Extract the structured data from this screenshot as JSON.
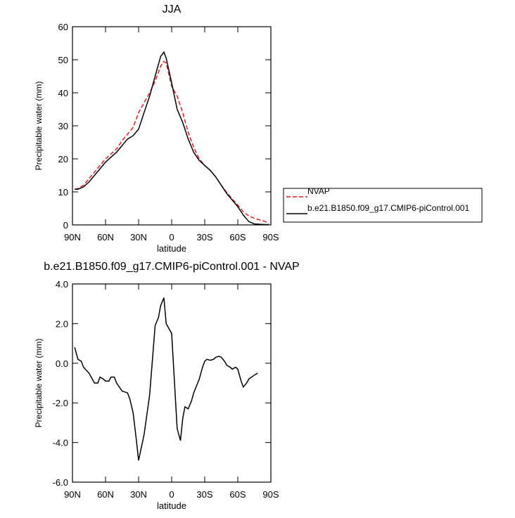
{
  "chart_data": [
    {
      "type": "line",
      "title": "JJA",
      "xlabel": "latitude",
      "ylabel": "Precipitable water (mm)",
      "xlim": [
        90,
        -90
      ],
      "xticks": [
        {
          "value": 90,
          "label": "90N"
        },
        {
          "value": 60,
          "label": "60N"
        },
        {
          "value": 30,
          "label": "30N"
        },
        0,
        {
          "value": -30,
          "label": "30S"
        },
        {
          "value": -60,
          "label": "60S"
        },
        {
          "value": -90,
          "label": "90S"
        }
      ],
      "ylim": [
        0,
        60
      ],
      "yticks": [
        0,
        10,
        20,
        30,
        40,
        50,
        60
      ],
      "legend": "right",
      "x": [
        88,
        85,
        80,
        75,
        70,
        65,
        60,
        55,
        50,
        45,
        40,
        35,
        30,
        25,
        20,
        15,
        10,
        7,
        5,
        0,
        -5,
        -10,
        -15,
        -20,
        -25,
        -30,
        -35,
        -40,
        -45,
        -50,
        -55,
        -60,
        -65,
        -70,
        -75,
        -80,
        -85,
        -88
      ],
      "series": [
        {
          "name": "NVAP",
          "color": "#e41a1c",
          "line_style": "dashed",
          "values": [
            10.8,
            11,
            12,
            14,
            16,
            18,
            20,
            21.5,
            23,
            25.5,
            27.5,
            29.5,
            34,
            37,
            40,
            43.5,
            48,
            49.5,
            49,
            42,
            39,
            34,
            28,
            23.5,
            20,
            18,
            16.5,
            14.5,
            12,
            9.8,
            7.8,
            6,
            4,
            2.7,
            2,
            1.5,
            1,
            0.5
          ]
        },
        {
          "name": "b.e21.B1850.f09_g17.CMIP6-piControl.001",
          "color": "#000000",
          "line_style": "solid",
          "values": [
            10.8,
            10.8,
            11.5,
            13,
            15,
            17,
            19,
            20.5,
            22,
            24,
            26,
            27,
            29,
            34,
            39,
            45,
            51,
            52.3,
            50.5,
            43,
            35,
            31,
            26,
            22,
            19.5,
            18,
            16.5,
            14.5,
            12,
            9.5,
            7.5,
            5.5,
            3,
            1,
            0.3,
            0.2,
            0.1,
            0.1
          ]
        }
      ]
    },
    {
      "type": "line",
      "title": "b.e21.B1850.f09_g17.CMIP6-piControl.001 - NVAP",
      "xlabel": "latitude",
      "ylabel": "Precipitable water (mm)",
      "xlim": [
        90,
        -90
      ],
      "xticks": [
        {
          "value": 90,
          "label": "90N"
        },
        {
          "value": 60,
          "label": "60N"
        },
        {
          "value": 30,
          "label": "30N"
        },
        0,
        {
          "value": -30,
          "label": "30S"
        },
        {
          "value": -60,
          "label": "60S"
        },
        {
          "value": -90,
          "label": "90S"
        }
      ],
      "ylim": [
        -6,
        4
      ],
      "yticks": [
        {
          "value": -6,
          "label": "-6.0"
        },
        {
          "value": -4,
          "label": "-4.0"
        },
        {
          "value": -2,
          "label": "-2.0"
        },
        {
          "value": 0,
          "label": "0.0"
        },
        {
          "value": 2,
          "label": "2.0"
        },
        {
          "value": 4,
          "label": "4.0"
        }
      ],
      "x": [
        88,
        85,
        82,
        80,
        75,
        72,
        70,
        67,
        65,
        62,
        60,
        57,
        55,
        52,
        50,
        45,
        40,
        38,
        35,
        32,
        30,
        25,
        20,
        15,
        12,
        10,
        7,
        5,
        0,
        -5,
        -8,
        -10,
        -12,
        -15,
        -18,
        -20,
        -25,
        -28,
        -30,
        -32,
        -35,
        -38,
        -40,
        -43,
        -45,
        -48,
        -50,
        -53,
        -55,
        -58,
        -60,
        -63,
        -65,
        -68,
        -70,
        -75,
        -78
      ],
      "series": [
        {
          "color": "#000000",
          "line_style": "solid",
          "values": [
            0.8,
            0.2,
            0.1,
            -0.2,
            -0.5,
            -0.8,
            -1.0,
            -1.0,
            -0.7,
            -0.8,
            -0.9,
            -0.9,
            -0.7,
            -0.7,
            -1.0,
            -1.4,
            -1.5,
            -1.8,
            -2.5,
            -3.9,
            -4.9,
            -3.6,
            -1.6,
            1.9,
            2.3,
            2.9,
            3.3,
            2.0,
            1.5,
            -3.3,
            -3.9,
            -2.8,
            -2.2,
            -2.3,
            -1.9,
            -1.5,
            -0.8,
            -0.2,
            0.1,
            0.2,
            0.15,
            0.2,
            0.3,
            0.35,
            0.3,
            0.1,
            -0.1,
            -0.2,
            -0.3,
            -0.2,
            -0.3,
            -0.9,
            -1.2,
            -1.0,
            -0.8,
            -0.6,
            -0.5
          ]
        }
      ]
    }
  ]
}
